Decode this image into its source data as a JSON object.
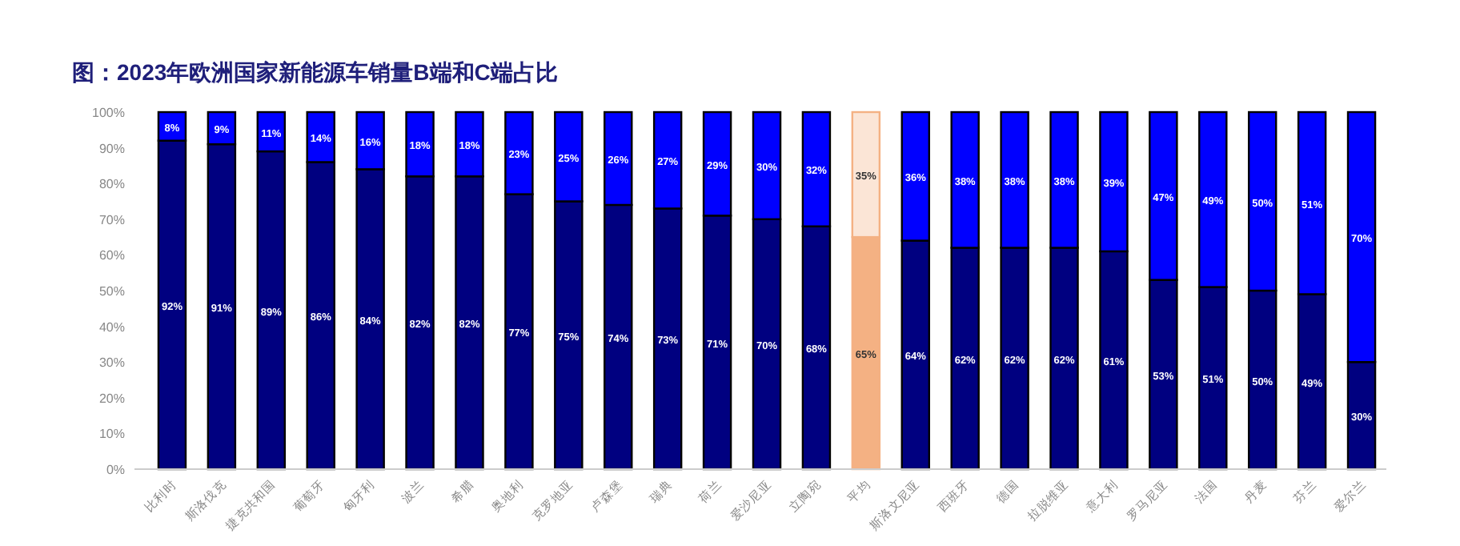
{
  "chart_data": {
    "type": "bar",
    "stacked": true,
    "title": "图：2023年欧洲国家新能源车销量B端和C端占比",
    "categories": [
      "比利时",
      "斯洛伐克",
      "捷克共和国",
      "葡萄牙",
      "匈牙利",
      "波兰",
      "希腊",
      "奥地利",
      "克罗地亚",
      "卢森堡",
      "瑞典",
      "荷兰",
      "爱沙尼亚",
      "立陶宛",
      "平均",
      "斯洛文尼亚",
      "西班牙",
      "德国",
      "拉脱维亚",
      "意大利",
      "罗马尼亚",
      "法国",
      "丹麦",
      "芬兰",
      "爱尔兰"
    ],
    "series": [
      {
        "color": "#000080",
        "colors": [
          "#000080",
          "#000080",
          "#000080",
          "#000080",
          "#000080",
          "#000080",
          "#000080",
          "#000080",
          "#000080",
          "#000080",
          "#000080",
          "#000080",
          "#000080",
          "#000080",
          "#f4b183",
          "#000080",
          "#000080",
          "#000080",
          "#000080",
          "#000080",
          "#000080",
          "#000080",
          "#000080",
          "#000080",
          "#000080"
        ],
        "values": [
          92,
          91,
          89,
          86,
          84,
          82,
          82,
          77,
          75,
          74,
          73,
          71,
          70,
          68,
          65,
          64,
          62,
          62,
          62,
          61,
          53,
          51,
          50,
          49,
          30
        ],
        "value_labels": [
          "92%",
          "91%",
          "89%",
          "86%",
          "84%",
          "82%",
          "82%",
          "77%",
          "75%",
          "74%",
          "73%",
          "71%",
          "70%",
          "68%",
          "65%",
          "64%",
          "62%",
          "62%",
          "62%",
          "61%",
          "53%",
          "51%",
          "50%",
          "49%",
          "30%"
        ]
      },
      {
        "color": "#0000ff",
        "colors": [
          "#0000ff",
          "#0000ff",
          "#0000ff",
          "#0000ff",
          "#0000ff",
          "#0000ff",
          "#0000ff",
          "#0000ff",
          "#0000ff",
          "#0000ff",
          "#0000ff",
          "#0000ff",
          "#0000ff",
          "#0000ff",
          "#fbe5d6",
          "#0000ff",
          "#0000ff",
          "#0000ff",
          "#0000ff",
          "#0000ff",
          "#0000ff",
          "#0000ff",
          "#0000ff",
          "#0000ff",
          "#0000ff"
        ],
        "values": [
          8,
          9,
          11,
          14,
          16,
          18,
          18,
          23,
          25,
          26,
          27,
          29,
          30,
          32,
          35,
          36,
          38,
          38,
          38,
          39,
          47,
          49,
          50,
          51,
          70
        ],
        "value_labels": [
          "8%",
          "9%",
          "11%",
          "14%",
          "16%",
          "18%",
          "18%",
          "23%",
          "25%",
          "26%",
          "27%",
          "29%",
          "30%",
          "32%",
          "35%",
          "36%",
          "38%",
          "38%",
          "38%",
          "39%",
          "47%",
          "49%",
          "50%",
          "51%",
          "70%"
        ]
      }
    ],
    "ylim": [
      0,
      100
    ],
    "yticks": [
      {
        "value": 0,
        "label": "0%"
      },
      {
        "value": 10,
        "label": "10%"
      },
      {
        "value": 20,
        "label": "20%"
      },
      {
        "value": 30,
        "label": "30%"
      },
      {
        "value": 40,
        "label": "40%"
      },
      {
        "value": 50,
        "label": "50%"
      },
      {
        "value": 60,
        "label": "60%"
      },
      {
        "value": 70,
        "label": "70%"
      },
      {
        "value": 80,
        "label": "80%"
      },
      {
        "value": 90,
        "label": "90%"
      },
      {
        "value": 100,
        "label": "100%"
      }
    ],
    "grid": false
  }
}
